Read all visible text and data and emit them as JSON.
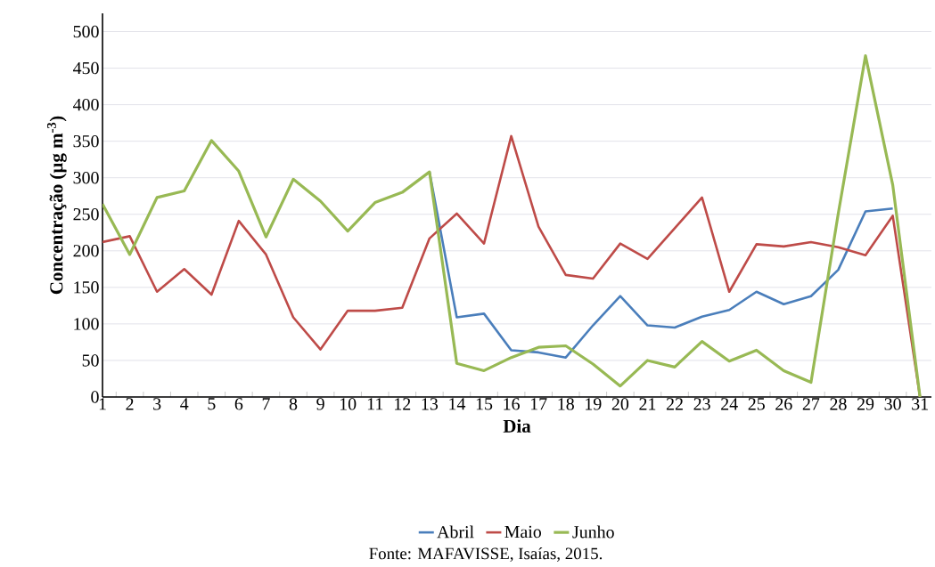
{
  "chart_data": {
    "type": "line",
    "xlabel": "Dia",
    "ylabel": "Concentração (µg m$^{-3}$)",
    "categories": [
      "1",
      "2",
      "3",
      "4",
      "5",
      "6",
      "7",
      "8",
      "9",
      "10",
      "11",
      "12",
      "13",
      "14",
      "15",
      "16",
      "17",
      "18",
      "19",
      "20",
      "21",
      "22",
      "23",
      "24",
      "25",
      "26",
      "27",
      "28",
      "29",
      "30",
      "31"
    ],
    "series": [
      {
        "name": "Abril",
        "color": "#4a7ebb",
        "values": [
          null,
          null,
          null,
          null,
          null,
          null,
          null,
          null,
          null,
          null,
          null,
          null,
          308,
          109,
          114,
          64,
          61,
          54,
          98,
          138,
          98,
          95,
          110,
          119,
          144,
          127,
          138,
          174,
          254,
          258,
          null
        ]
      },
      {
        "name": "Maio",
        "color": "#be4b48",
        "values": [
          212,
          220,
          144,
          175,
          140,
          241,
          195,
          109,
          65,
          118,
          118,
          122,
          217,
          251,
          210,
          357,
          233,
          167,
          162,
          210,
          189,
          231,
          273,
          144,
          209,
          206,
          212,
          205,
          194,
          248,
          0
        ]
      },
      {
        "name": "Junho",
        "color": "#98b954",
        "values": [
          264,
          195,
          273,
          282,
          351,
          309,
          219,
          298,
          268,
          227,
          266,
          280,
          308,
          46,
          36,
          54,
          68,
          70,
          45,
          15,
          50,
          41,
          76,
          49,
          64,
          36,
          20,
          251,
          467,
          290,
          0
        ]
      }
    ],
    "ylim": [
      0,
      525
    ],
    "yticks": [
      0,
      50,
      100,
      150,
      200,
      250,
      300,
      350,
      400,
      450,
      500
    ],
    "grid": "y",
    "legend": "bottom",
    "marker": "none",
    "line_style": "solid",
    "annotations": [
      "Fonte: MAFAVISSE, Isaías, 2015."
    ]
  }
}
